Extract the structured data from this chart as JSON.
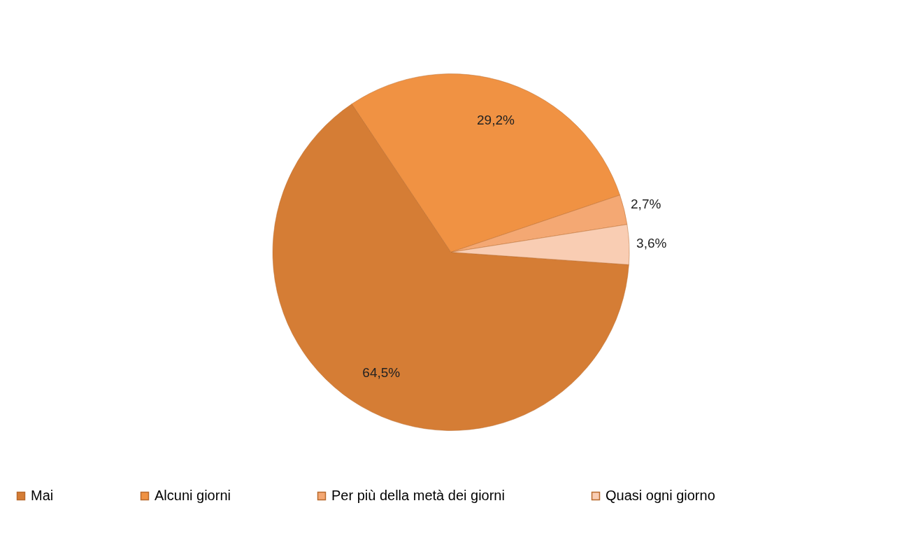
{
  "chart_data": {
    "type": "pie",
    "categories": [
      "Mai",
      "Alcuni giorni",
      "Per più della metà dei giorni",
      "Quasi ogni giorno"
    ],
    "values": [
      64.5,
      29.2,
      2.7,
      3.6
    ],
    "colors": [
      "#d57d35",
      "#f09243",
      "#f4a873",
      "#f9cdb3"
    ],
    "value_labels": [
      "64,5%",
      "29,2%",
      "2,7%",
      "3,6%"
    ],
    "legend": "bottom"
  }
}
